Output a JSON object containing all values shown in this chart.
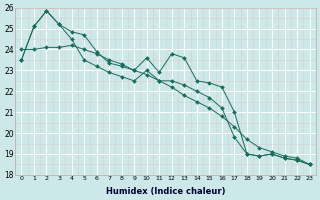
{
  "xlabel": "Humidex (Indice chaleur)",
  "x": [
    0,
    1,
    2,
    3,
    4,
    5,
    6,
    7,
    8,
    9,
    10,
    11,
    12,
    13,
    14,
    15,
    16,
    17,
    18,
    19,
    20,
    21,
    22,
    23
  ],
  "s1": [
    23.5,
    25.1,
    25.85,
    25.2,
    24.85,
    24.7,
    23.9,
    23.35,
    23.2,
    23.0,
    23.6,
    22.9,
    23.8,
    23.6,
    22.5,
    22.4,
    22.2,
    21.0,
    19.0,
    18.9,
    19.0,
    18.8,
    18.7,
    18.5
  ],
  "s2": [
    23.5,
    25.1,
    25.85,
    25.2,
    24.5,
    23.5,
    23.2,
    22.9,
    22.7,
    22.5,
    23.0,
    22.5,
    22.5,
    22.3,
    22.0,
    21.7,
    21.2,
    19.8,
    19.0,
    18.9,
    19.0,
    18.8,
    18.7,
    18.5
  ],
  "s3": [
    24.0,
    24.0,
    24.1,
    24.1,
    24.2,
    24.0,
    23.8,
    23.5,
    23.3,
    23.0,
    22.8,
    22.5,
    22.2,
    21.8,
    21.5,
    21.2,
    20.8,
    20.3,
    19.7,
    19.3,
    19.1,
    18.9,
    18.8,
    18.5
  ],
  "line_color": "#1a6b5a",
  "bg_color": "#cce8e8",
  "grid_color": "#ffffff",
  "grid_minor_color": "#ddcccc",
  "ylim": [
    18,
    26
  ],
  "xlim": [
    -0.5,
    23.5
  ]
}
